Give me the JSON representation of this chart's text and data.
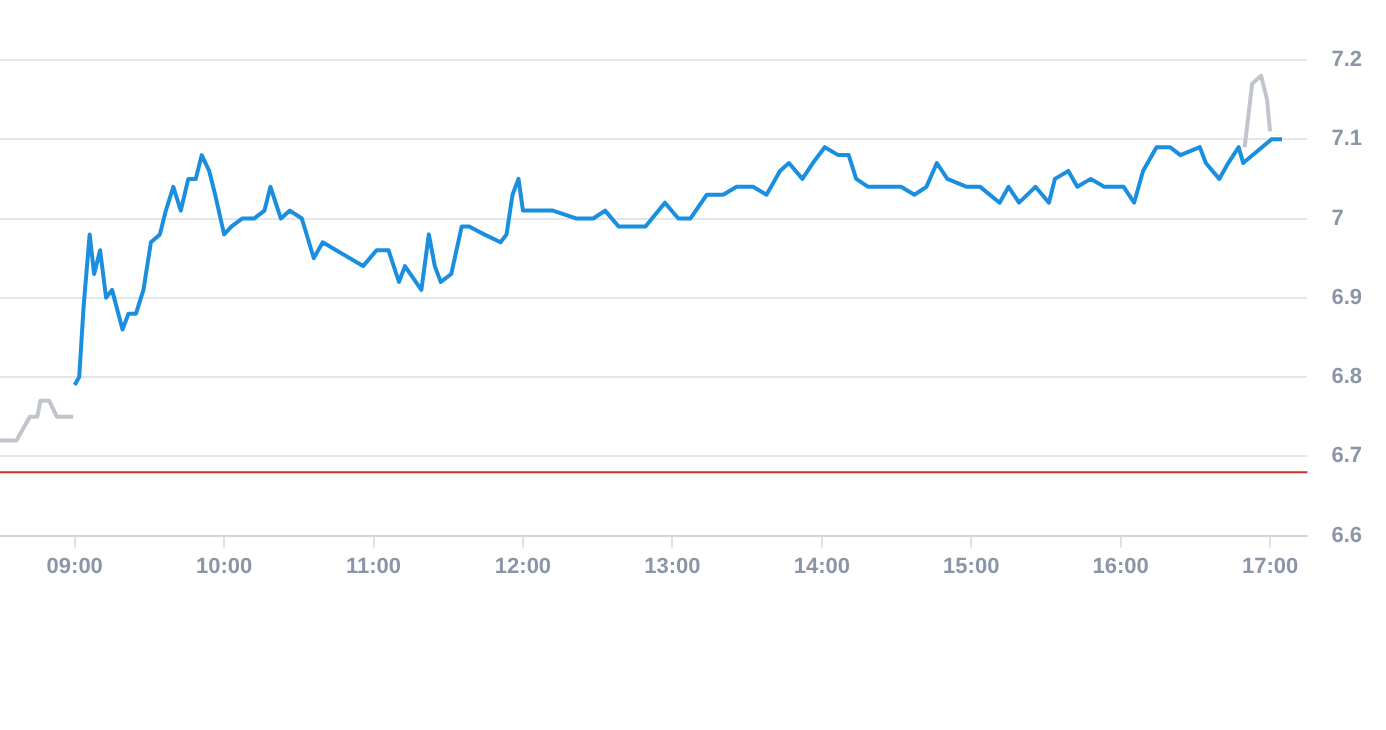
{
  "chart_data": {
    "type": "line",
    "xlim": [
      8.5,
      17.25
    ],
    "xticks": [
      {
        "value": 9,
        "label": "09:00"
      },
      {
        "value": 10,
        "label": "10:00"
      },
      {
        "value": 11,
        "label": "11:00"
      },
      {
        "value": 12,
        "label": "12:00"
      },
      {
        "value": 13,
        "label": "13:00"
      },
      {
        "value": 14,
        "label": "14:00"
      },
      {
        "value": 15,
        "label": "15:00"
      },
      {
        "value": 16,
        "label": "16:00"
      },
      {
        "value": 17,
        "label": "17:00"
      }
    ],
    "ylim": [
      6.6,
      7.2
    ],
    "yticks": [
      6.6,
      6.7,
      6.8,
      6.9,
      {
        "value": 7,
        "label": "7"
      },
      7.1,
      7.2
    ],
    "grid": "y",
    "legend": false,
    "marker": "none",
    "line_style": "solid",
    "ref_lines": [
      {
        "axis": "y",
        "value": 6.68,
        "color": "#d0302a"
      }
    ],
    "series": [
      {
        "color": "#c0c4cc",
        "x": [
          8.5,
          8.61,
          8.7,
          8.75,
          8.77,
          8.83,
          8.88,
          8.99
        ],
        "values": [
          6.72,
          6.72,
          6.75,
          6.75,
          6.77,
          6.77,
          6.75,
          6.75
        ]
      },
      {
        "color": "#c0c4cc",
        "x": [
          16.83,
          16.88,
          16.94,
          16.98,
          17.0
        ],
        "values": [
          7.09,
          7.17,
          7.18,
          7.15,
          7.11
        ]
      },
      {
        "color": "#1a8fdf",
        "x": [
          9.0,
          9.03,
          9.06,
          9.1,
          9.13,
          9.17,
          9.21,
          9.25,
          9.32,
          9.36,
          9.41,
          9.46,
          9.51,
          9.57,
          9.61,
          9.66,
          9.71,
          9.76,
          9.81,
          9.85,
          9.9,
          9.94,
          10.0,
          10.05,
          10.12,
          10.2,
          10.27,
          10.31,
          10.38,
          10.44,
          10.52,
          10.6,
          10.66,
          10.75,
          10.93,
          11.02,
          11.1,
          11.17,
          11.21,
          11.32,
          11.37,
          11.41,
          11.45,
          11.52,
          11.59,
          11.64,
          11.74,
          11.85,
          11.89,
          11.93,
          11.97,
          12.0,
          12.11,
          12.2,
          12.36,
          12.47,
          12.55,
          12.64,
          12.82,
          12.95,
          13.04,
          13.12,
          13.23,
          13.34,
          13.43,
          13.54,
          13.63,
          13.72,
          13.78,
          13.87,
          13.94,
          14.02,
          14.11,
          14.18,
          14.23,
          14.31,
          14.42,
          14.53,
          14.62,
          14.7,
          14.77,
          14.84,
          14.97,
          15.06,
          15.19,
          15.25,
          15.32,
          15.43,
          15.52,
          15.56,
          15.65,
          15.71,
          15.8,
          15.89,
          16.02,
          16.09,
          16.15,
          16.24,
          16.33,
          16.4,
          16.53,
          16.57,
          16.66,
          16.72,
          16.79,
          16.82,
          17.01,
          17.08
        ],
        "values": [
          6.79,
          6.8,
          6.89,
          6.98,
          6.93,
          6.96,
          6.9,
          6.91,
          6.86,
          6.88,
          6.88,
          6.91,
          6.97,
          6.98,
          7.01,
          7.04,
          7.01,
          7.05,
          7.05,
          7.08,
          7.06,
          7.03,
          6.98,
          6.99,
          7.0,
          7.0,
          7.01,
          7.04,
          7.0,
          7.01,
          7.0,
          6.95,
          6.97,
          6.96,
          6.94,
          6.96,
          6.96,
          6.92,
          6.94,
          6.91,
          6.98,
          6.94,
          6.92,
          6.93,
          6.99,
          6.99,
          6.98,
          6.97,
          6.98,
          7.03,
          7.05,
          7.01,
          7.01,
          7.01,
          7.0,
          7.0,
          7.01,
          6.99,
          6.99,
          7.02,
          7.0,
          7.0,
          7.03,
          7.03,
          7.04,
          7.04,
          7.03,
          7.06,
          7.07,
          7.05,
          7.07,
          7.09,
          7.08,
          7.08,
          7.05,
          7.04,
          7.04,
          7.04,
          7.03,
          7.04,
          7.07,
          7.05,
          7.04,
          7.04,
          7.02,
          7.04,
          7.02,
          7.04,
          7.02,
          7.05,
          7.06,
          7.04,
          7.05,
          7.04,
          7.04,
          7.02,
          7.06,
          7.09,
          7.09,
          7.08,
          7.09,
          7.07,
          7.05,
          7.07,
          7.09,
          7.07,
          7.1,
          7.1
        ]
      }
    ]
  }
}
